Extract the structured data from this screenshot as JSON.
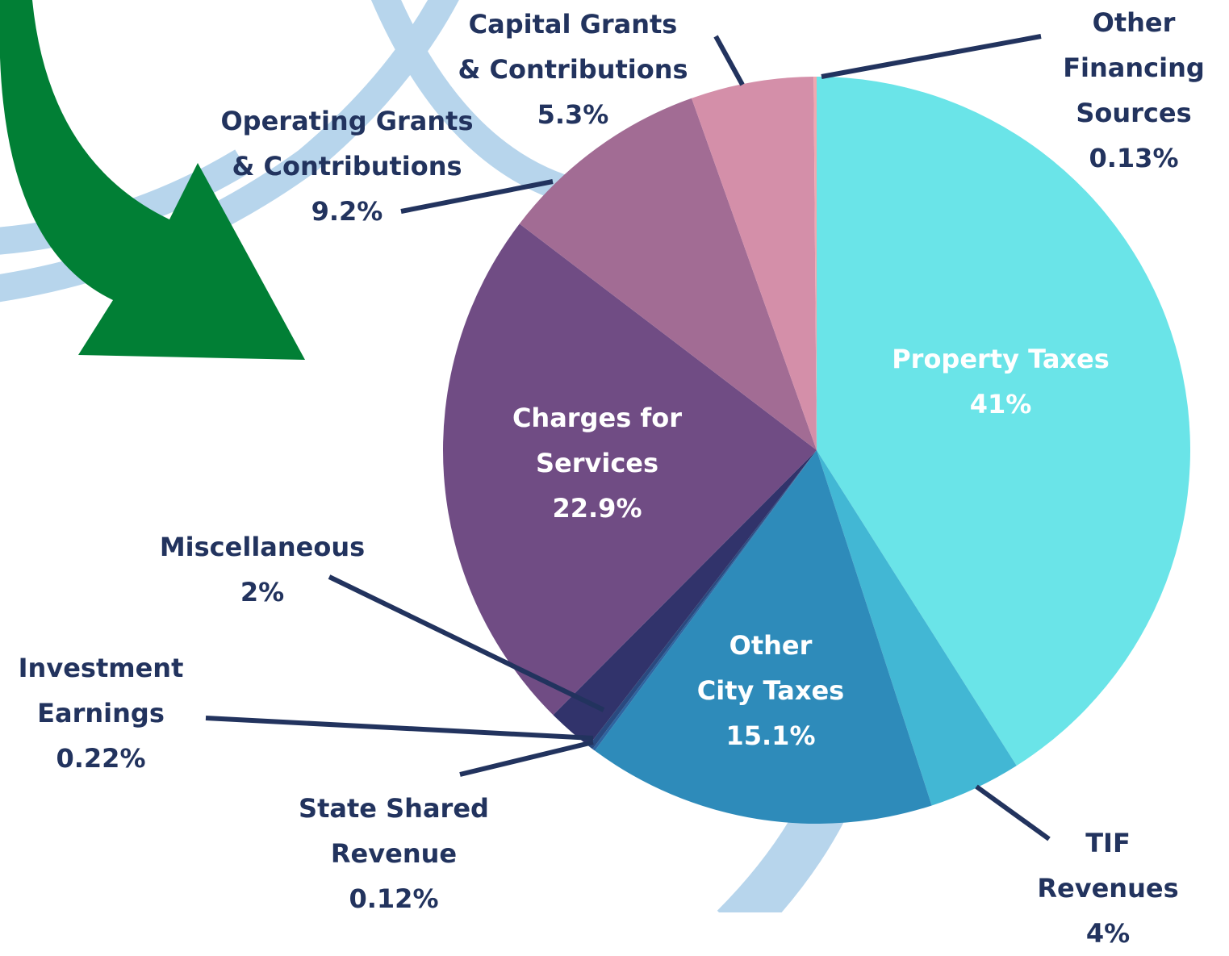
{
  "chart_data": {
    "type": "pie",
    "categories": [
      "Property Taxes",
      "TIF Revenues",
      "Other\nCity Taxes",
      "State Shared\nRevenue",
      "Investment\nEarnings",
      "Miscellaneous",
      "Charges for\nServices",
      "Operating Grants\n& Contributions",
      "Capital Grants\n& Contributions",
      "Other\nFinancing\nSources"
    ],
    "values": [
      41,
      4,
      15.1,
      0.12,
      0.22,
      2,
      22.9,
      9.2,
      5.3,
      0.13
    ],
    "value_labels": [
      "41%",
      "4%",
      "15.1%",
      "0.12%",
      "0.22%",
      "2%",
      "22.9%",
      "9.2%",
      "5.3%",
      "0.13%"
    ],
    "colors": [
      "#6ae4e8",
      "#42b7d4",
      "#2e8bba",
      "#2d64a0",
      "#2a4a80",
      "#31336b",
      "#704c84",
      "#a26c94",
      "#d48fa9",
      "#f0a8b0"
    ]
  }
}
